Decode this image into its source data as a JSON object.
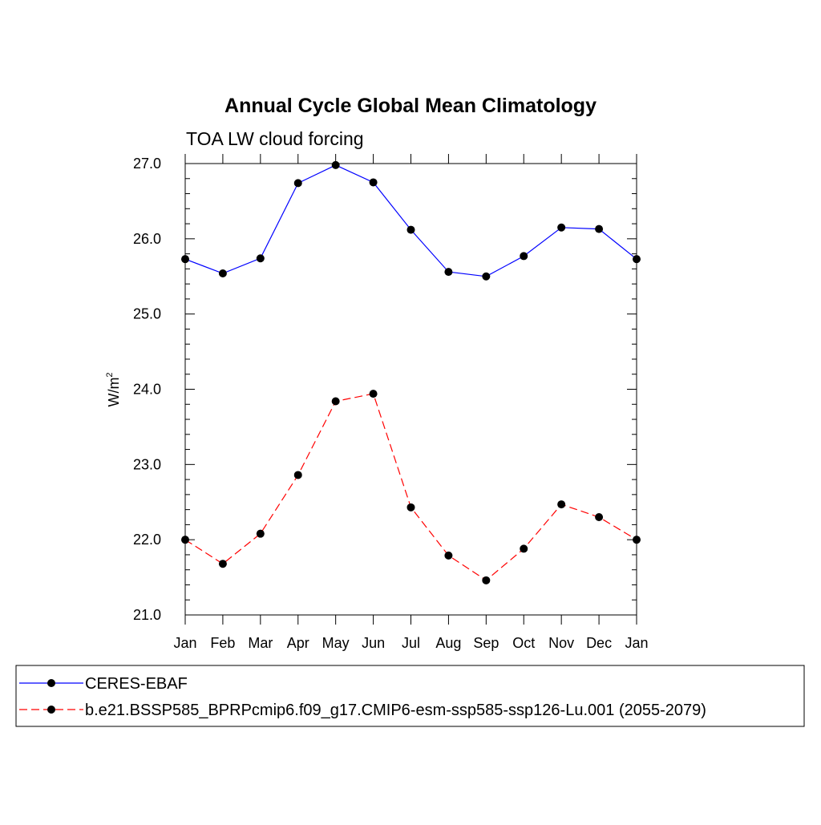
{
  "chart_data": {
    "type": "line",
    "title": "Annual Cycle Global Mean Climatology",
    "subtitle": "TOA LW cloud forcing",
    "ylabel": "W/m",
    "ylabel_superscript": "2",
    "xlabel": "",
    "ylim": [
      21.0,
      27.0
    ],
    "y_ticks": [
      "21.0",
      "22.0",
      "23.0",
      "24.0",
      "25.0",
      "26.0",
      "27.0"
    ],
    "categories": [
      "Jan",
      "Feb",
      "Mar",
      "Apr",
      "May",
      "Jun",
      "Jul",
      "Aug",
      "Sep",
      "Oct",
      "Nov",
      "Dec",
      "Jan"
    ],
    "legend_position": "bottom",
    "grid": false,
    "series": [
      {
        "name": "CERES-EBAF",
        "color": "#0000ff",
        "line_style": "solid",
        "marker": "filled-circle",
        "values": [
          25.73,
          25.54,
          25.74,
          26.74,
          26.98,
          26.75,
          26.12,
          25.56,
          25.5,
          25.77,
          26.15,
          26.13,
          25.73
        ]
      },
      {
        "name": "b.e21.BSSP585_BPRPcmip6.f09_g17.CMIP6-esm-ssp585-ssp126-Lu.001 (2055-2079)",
        "color": "#ff0000",
        "line_style": "dashed",
        "marker": "filled-circle",
        "values": [
          22.0,
          21.68,
          22.08,
          22.86,
          23.84,
          23.94,
          22.43,
          21.79,
          21.46,
          21.88,
          22.47,
          22.3,
          22.0
        ]
      }
    ]
  }
}
